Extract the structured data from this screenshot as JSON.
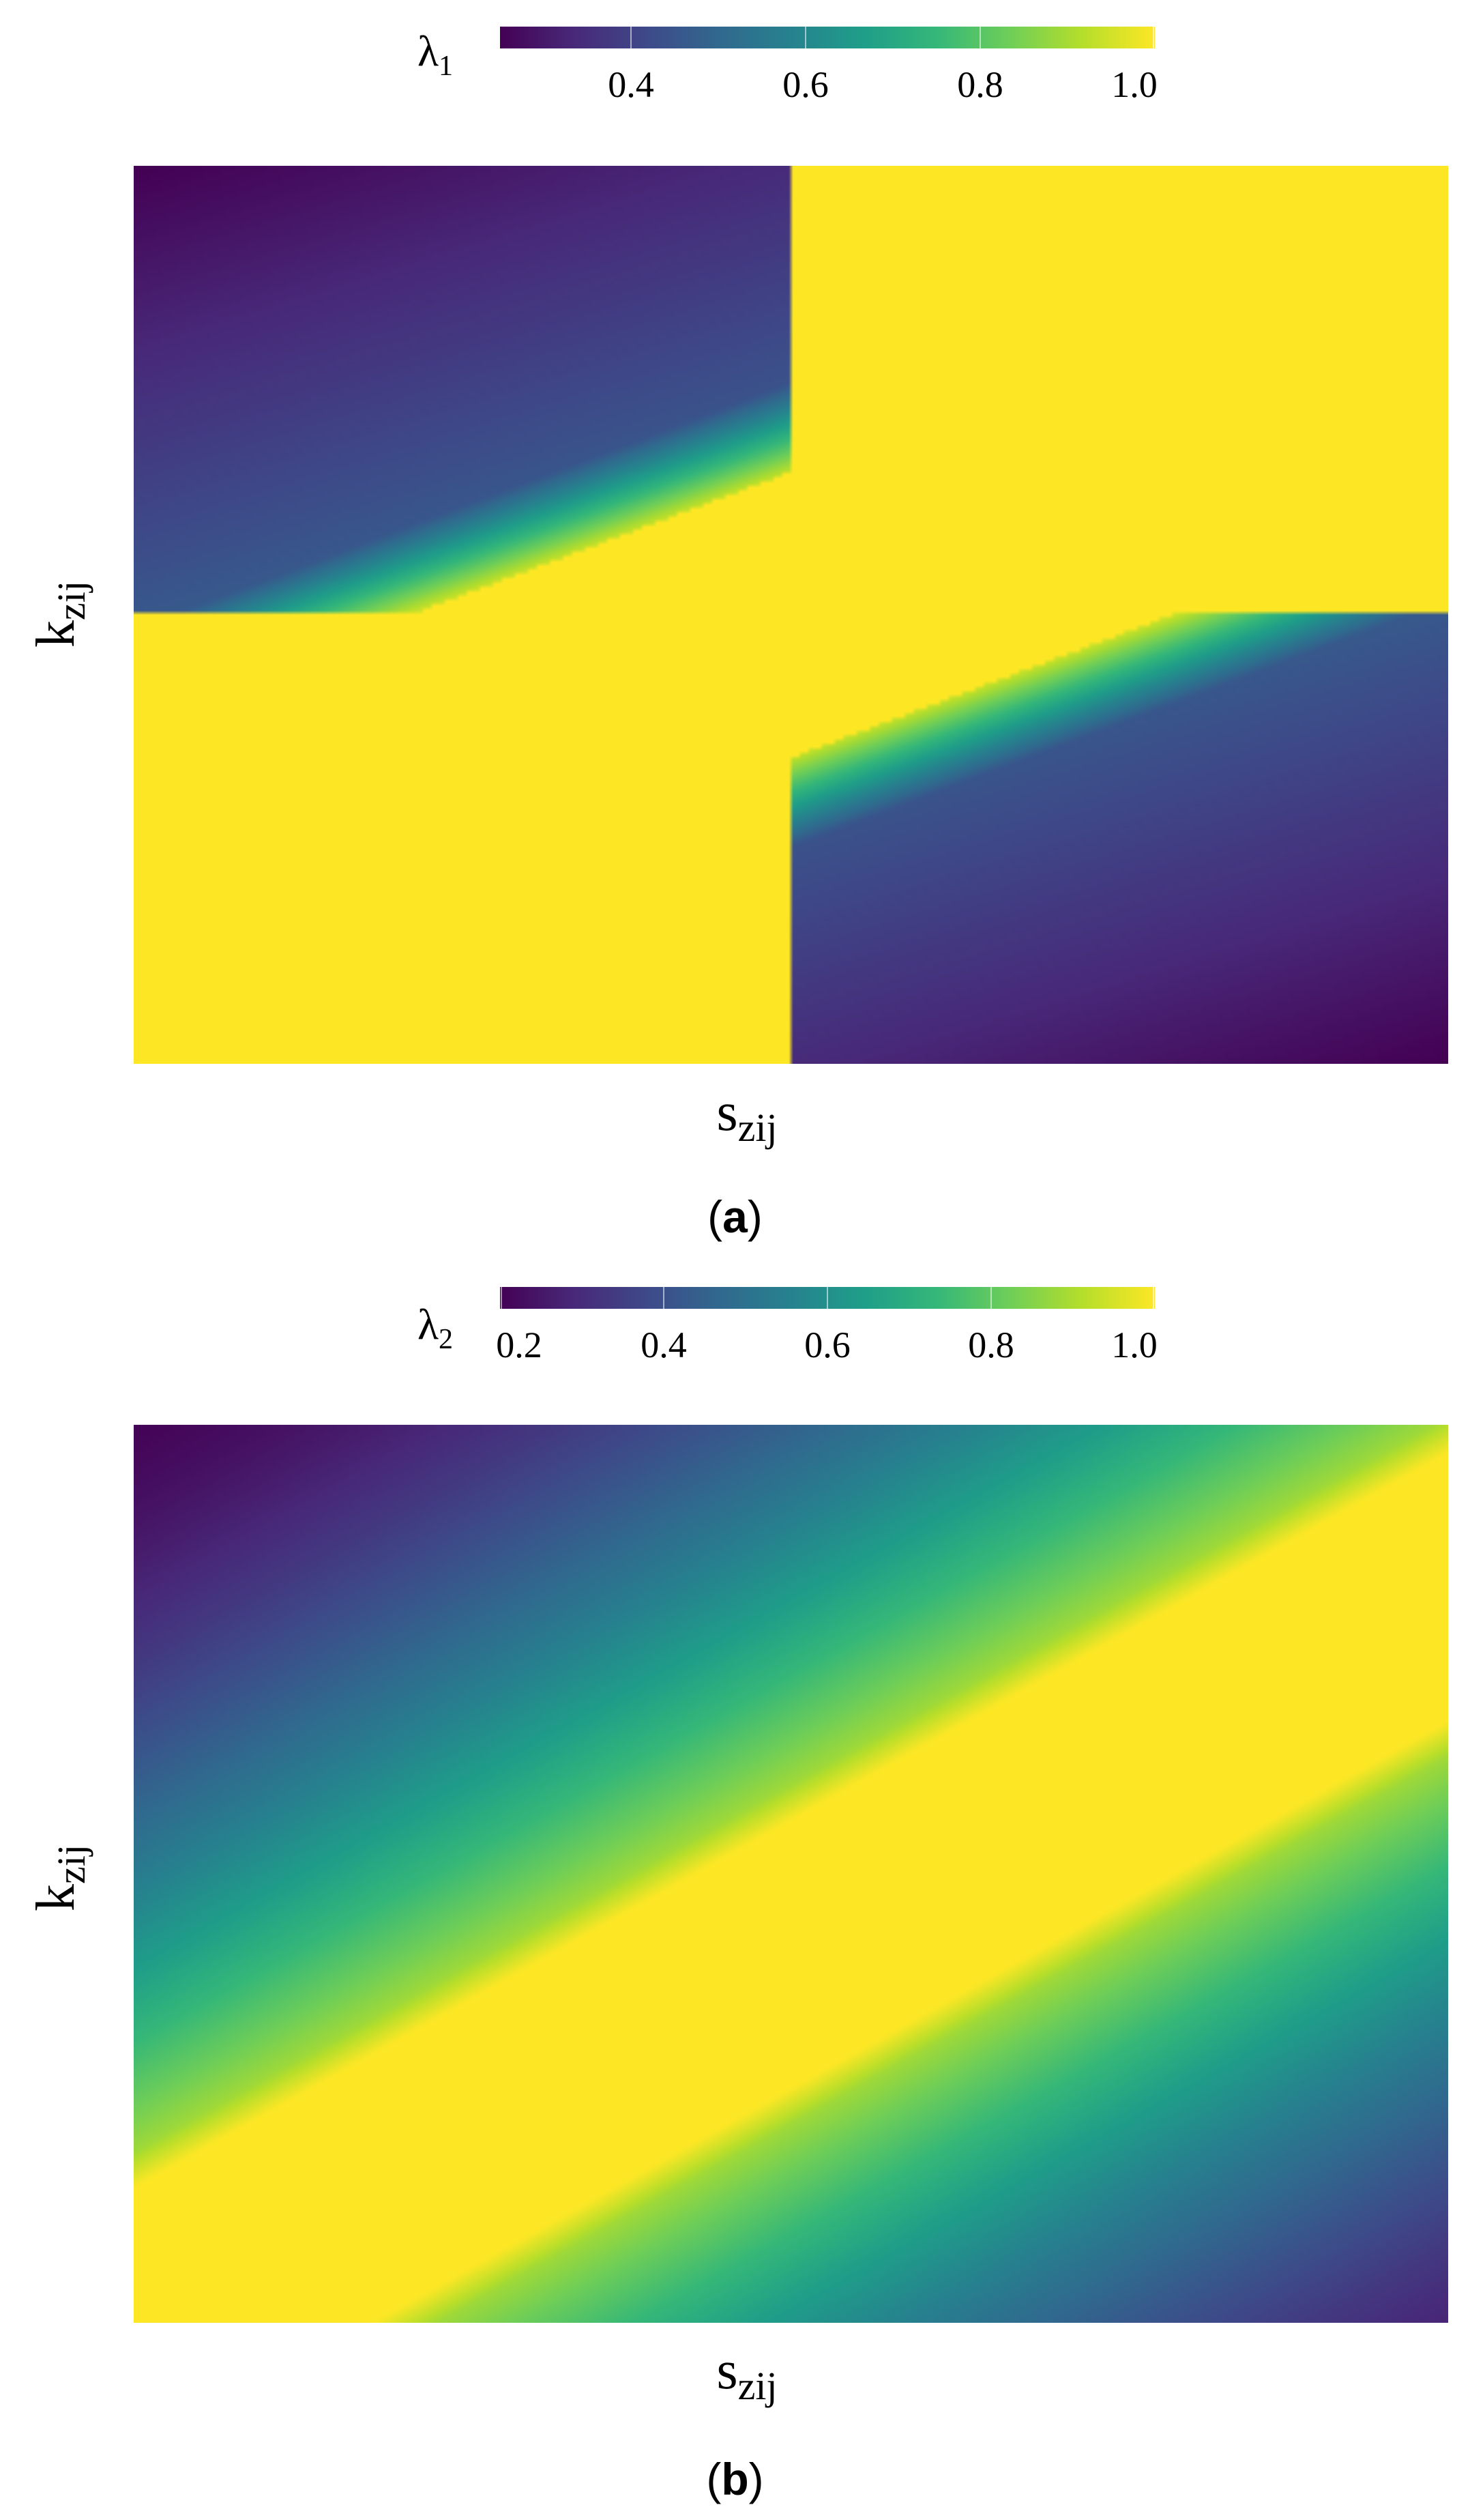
{
  "chart_data": [
    {
      "type": "heatmap",
      "panel_label": "a",
      "xlabel_base": "s",
      "xlabel_sub": "zij",
      "ylabel_base": "k",
      "ylabel_sub": "zij",
      "colorbar": {
        "label_base": "λ",
        "label_sub": "1",
        "colormap": "viridis",
        "range": [
          0.25,
          1.0
        ],
        "ticks": [
          0.4,
          0.6,
          0.8,
          1.0
        ],
        "tick_labels": [
          "0.4",
          "0.6",
          "0.8",
          "1.0"
        ]
      },
      "description_values": {
        "corner_top_left": 0.25,
        "corner_bottom_right": 0.25,
        "max_value": 1.0
      }
    },
    {
      "type": "heatmap",
      "panel_label": "b",
      "xlabel_base": "s",
      "xlabel_sub": "zij",
      "ylabel_base": "k",
      "ylabel_sub": "zij",
      "colorbar": {
        "label_base": "λ",
        "label_sub": "2",
        "colormap": "viridis",
        "range": [
          0.2,
          1.0
        ],
        "ticks": [
          0.2,
          0.4,
          0.6,
          0.8,
          1.0
        ],
        "tick_labels": [
          "0.2",
          "0.4",
          "0.6",
          "0.8",
          "1.0"
        ]
      },
      "description_values": {
        "corner_top_left": 0.2,
        "corner_bottom_right": 0.2,
        "max_value": 1.0
      }
    }
  ],
  "colors": {
    "viridis_stops": [
      "#440154",
      "#482878",
      "#3e4989",
      "#31688e",
      "#26828e",
      "#1f9e89",
      "#35b779",
      "#6ece58",
      "#b5de2b",
      "#fde725"
    ]
  }
}
